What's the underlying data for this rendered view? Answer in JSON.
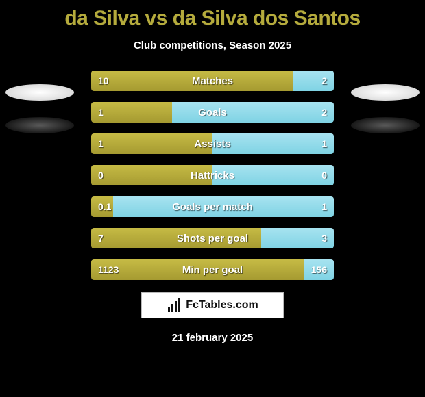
{
  "title": "da Silva vs da Silva dos Santos",
  "subtitle": "Club competitions, Season 2025",
  "date": "21 february 2025",
  "colors": {
    "background": "#000000",
    "title": "#b5ab3c",
    "left_bar": "#b5ab3c",
    "right_bar": "#8fd9e8",
    "text": "#ffffff"
  },
  "watermark": {
    "text": "FcTables.com"
  },
  "avatars": {
    "left_color": "#ffffff",
    "right_color": "#ffffff"
  },
  "rows": [
    {
      "label": "Matches",
      "left_val": "10",
      "right_val": "2",
      "left_pct": 83.3
    },
    {
      "label": "Goals",
      "left_val": "1",
      "right_val": "2",
      "left_pct": 33.3
    },
    {
      "label": "Assists",
      "left_val": "1",
      "right_val": "1",
      "left_pct": 50.0
    },
    {
      "label": "Hattricks",
      "left_val": "0",
      "right_val": "0",
      "left_pct": 50.0
    },
    {
      "label": "Goals per match",
      "left_val": "0.1",
      "right_val": "1",
      "left_pct": 9.1
    },
    {
      "label": "Shots per goal",
      "left_val": "7",
      "right_val": "3",
      "left_pct": 70.0
    },
    {
      "label": "Min per goal",
      "left_val": "1123",
      "right_val": "156",
      "left_pct": 87.8
    }
  ]
}
